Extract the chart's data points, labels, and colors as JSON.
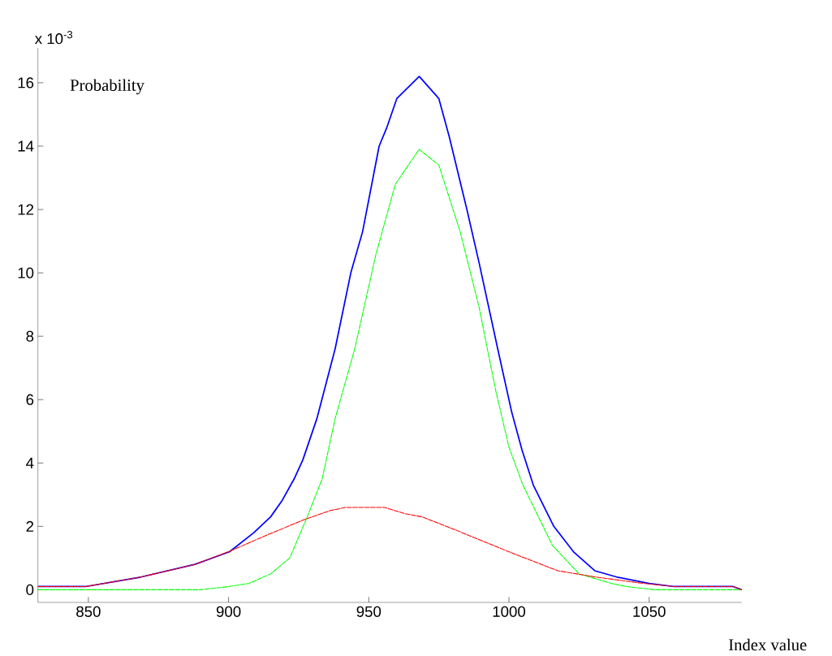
{
  "chart_data": {
    "type": "line",
    "ylabel": "Probability",
    "xlabel": "Index value",
    "annotations": [
      "x 10$^{-3}$"
    ],
    "xlim": [
      832,
      1083
    ],
    "xticks": [
      850,
      900,
      950,
      1000,
      1050
    ],
    "ylim": [
      -0.4,
      17.1
    ],
    "yticks": [
      0,
      2,
      4,
      6,
      8,
      10,
      12,
      14,
      16
    ],
    "grid": false,
    "marker": "none",
    "series": [
      {
        "color": "#0000ff",
        "line_style": "solid",
        "x": [
          832,
          849,
          868.7,
          888,
          900.4,
          909,
          915,
          919,
          923.4,
          926.5,
          931.5,
          938,
          943.6,
          947.8,
          953.7,
          956.5,
          960,
          968,
          975,
          978.7,
          985,
          989.4,
          996,
          1001,
          1004.7,
          1008.7,
          1016,
          1023,
          1030.6,
          1038.5,
          1050,
          1059,
          1080,
          1083
        ],
        "values": [
          0.1,
          0.1,
          0.4,
          0.8,
          1.2,
          1.8,
          2.3,
          2.8,
          3.5,
          4.1,
          5.4,
          7.6,
          10.0,
          11.3,
          14.0,
          14.6,
          15.5,
          16.2,
          15.5,
          14.3,
          12.0,
          10.3,
          7.6,
          5.6,
          4.4,
          3.3,
          2.0,
          1.2,
          0.6,
          0.4,
          0.2,
          0.1,
          0.1,
          0.0
        ]
      },
      {
        "color": "#00ff00",
        "line_style": "dotted",
        "x": [
          832,
          890,
          900,
          907.3,
          915,
          921.8,
          927.6,
          933.4,
          938,
          945,
          952.6,
          959.5,
          968,
          975,
          982.6,
          989.4,
          992.3,
          995.5,
          1000,
          1005,
          1015.5,
          1025,
          1036.6,
          1042,
          1052,
          1083
        ],
        "values": [
          0.0,
          0.0,
          0.1,
          0.2,
          0.5,
          1.0,
          2.2,
          3.5,
          5.4,
          7.6,
          10.6,
          12.8,
          13.9,
          13.4,
          11.3,
          8.9,
          7.6,
          6.2,
          4.5,
          3.3,
          1.4,
          0.5,
          0.2,
          0.1,
          0.0,
          0.0
        ]
      },
      {
        "color": "#ff0000",
        "line_style": "dotted",
        "x": [
          832,
          849,
          868.7,
          888,
          900,
          913,
          926.6,
          936.3,
          942,
          955.5,
          963,
          969,
          980.6,
          999.9,
          1017.4,
          1031,
          1048,
          1059,
          1080,
          1083
        ],
        "values": [
          0.1,
          0.1,
          0.4,
          0.8,
          1.2,
          1.7,
          2.2,
          2.5,
          2.6,
          2.6,
          2.4,
          2.3,
          1.9,
          1.2,
          0.6,
          0.4,
          0.2,
          0.1,
          0.1,
          0.0
        ]
      }
    ]
  }
}
